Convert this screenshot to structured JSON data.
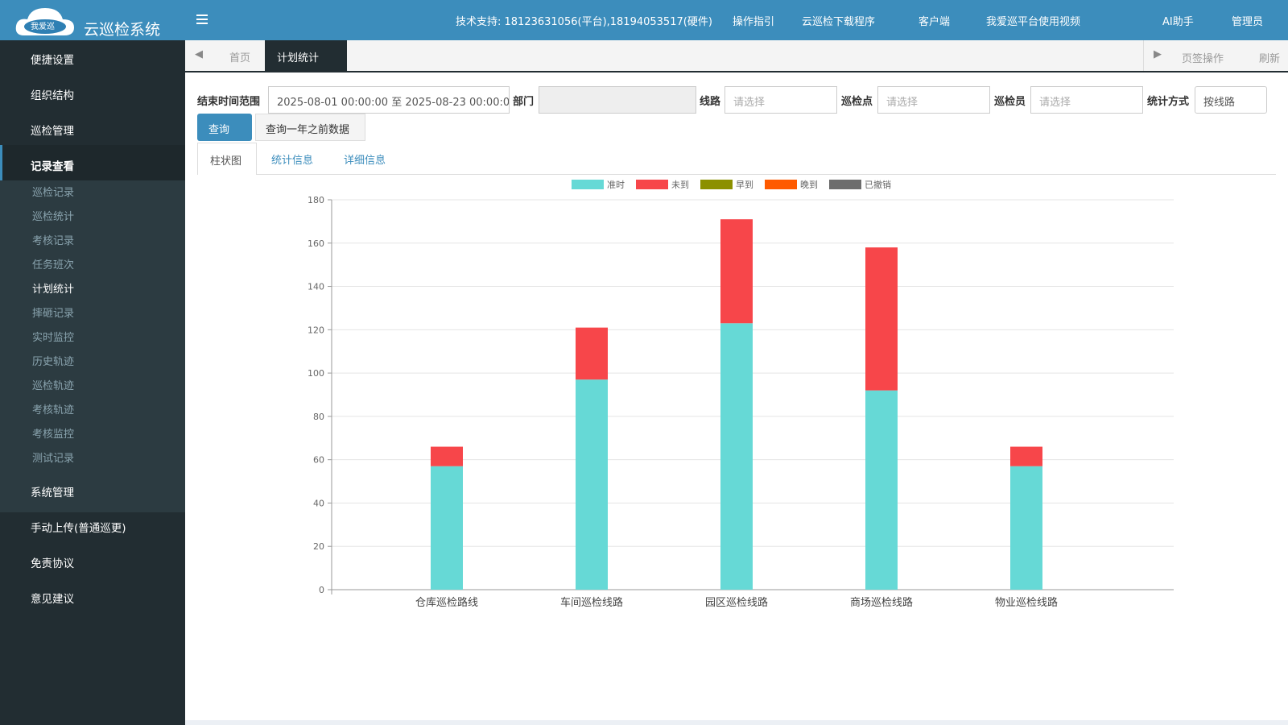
{
  "header": {
    "logo_badge": "我爱巡",
    "title": "云巡检系统",
    "support": "技术支持: 18123631056(平台),18194053517(硬件)",
    "links": [
      "操作指引",
      "云巡检下载程序",
      "客户端",
      "我爱巡平台使用视频",
      "AI助手",
      "管理员"
    ]
  },
  "sidebar": {
    "top_items": [
      "便捷设置",
      "组织结构",
      "巡检管理",
      "记录查看"
    ],
    "submenu": [
      "巡检记录",
      "巡检统计",
      "考核记录",
      "任务班次",
      "计划统计",
      "摔砸记录",
      "实时监控",
      "历史轨迹",
      "巡检轨迹",
      "考核轨迹",
      "考核监控",
      "测试记录"
    ],
    "bottom_items": [
      "系统管理",
      "手动上传(普通巡更)",
      "免责协议",
      "意见建议"
    ]
  },
  "tabs": {
    "items": [
      "首页",
      "计划统计"
    ],
    "actions": [
      "页签操作",
      "刷新"
    ]
  },
  "filters": {
    "labels": [
      "结束时间范围",
      "部门",
      "线路",
      "巡检点",
      "巡检员",
      "统计方式"
    ],
    "date_range": "2025-08-01 00:00:00 至 2025-08-23 00:00:0",
    "placeholders": [
      "请选择",
      "请选择",
      "请选择"
    ],
    "mode": "按线路",
    "buttons": [
      "查询",
      "查询一年之前数据"
    ]
  },
  "content_tabs": [
    "柱状图",
    "统计信息",
    "详细信息"
  ],
  "chart_data": {
    "type": "stacked_bar",
    "categories": [
      "仓库巡检路线",
      "车间巡检线路",
      "园区巡检线路",
      "商场巡检线路",
      "物业巡检线路"
    ],
    "series": [
      {
        "name": "准时",
        "color": "#66d9d6",
        "values": [
          57,
          97,
          123,
          92,
          57
        ]
      },
      {
        "name": "未到",
        "color": "#f7464a",
        "values": [
          9,
          24,
          48,
          66,
          9
        ]
      },
      {
        "name": "早到",
        "color": "#8c9000",
        "values": [
          0,
          0,
          0,
          0,
          0
        ]
      },
      {
        "name": "晚到",
        "color": "#ff5a00",
        "values": [
          0,
          0,
          0,
          0,
          0
        ]
      },
      {
        "name": "已撤销",
        "color": "#6d6d6d",
        "values": [
          0,
          0,
          0,
          0,
          0
        ]
      }
    ],
    "ylim": [
      0,
      180
    ],
    "yticks": [
      0,
      20,
      40,
      60,
      80,
      100,
      120,
      140,
      160,
      180
    ],
    "grid": true,
    "legend": "top"
  }
}
